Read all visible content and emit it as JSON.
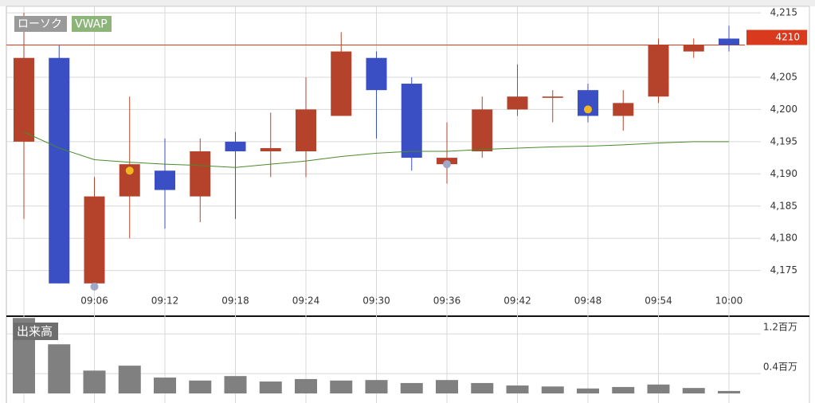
{
  "chart_data": [
    {
      "type": "candlestick",
      "categories": [
        null,
        null,
        "09:06",
        null,
        "09:12",
        null,
        "09:18",
        null,
        "09:24",
        null,
        "09:30",
        null,
        "09:36",
        null,
        "09:42",
        null,
        "09:48",
        null,
        "09:54",
        null,
        "10:00"
      ],
      "series": [
        {
          "name": "ローソク",
          "legend_color": "#9a9a9a",
          "up_color": "#b5432c",
          "down_color": "#3a4fc4",
          "open": [
            4195,
            4208,
            4173,
            4186.5,
            4190.5,
            4186.5,
            4195,
            4193.5,
            4193.5,
            4199,
            4208,
            4204,
            4191.5,
            4193.5,
            4200,
            4201.8,
            4203,
            4199,
            4202,
            4209,
            4211
          ],
          "high": [
            4215,
            4210,
            4189.5,
            4202,
            4195.5,
            4195.5,
            4196.5,
            4199.5,
            4205,
            4212,
            4209,
            4205,
            4198,
            4202,
            4207,
            4203,
            4204,
            4203,
            4211,
            4211,
            4213
          ],
          "low": [
            4183,
            4173,
            4172.5,
            4180,
            4181.5,
            4182.5,
            4183,
            4189.5,
            4189.5,
            4199,
            4195.5,
            4190.5,
            4188.5,
            4192.5,
            4199,
            4198,
            4198,
            4196.7,
            4201,
            4208,
            4209
          ],
          "close": [
            4208,
            4173,
            4186.5,
            4191.5,
            4187.5,
            4193.5,
            4193.5,
            4194,
            4200,
            4209,
            4203,
            4192.5,
            4192.5,
            4200,
            4202,
            4202,
            4199,
            4201,
            4210,
            4210,
            4210
          ]
        },
        {
          "name": "VWAP",
          "legend_color": "#8db57a",
          "color": "#4a8a2a",
          "values": [
            4196.5,
            4194,
            4192.2,
            4191.8,
            4191.5,
            4191.3,
            4191,
            4191.5,
            4192,
            4192.7,
            4193.2,
            4193.5,
            4193.5,
            4193.8,
            4194,
            4194.2,
            4194.3,
            4194.5,
            4194.8,
            4195,
            4195
          ]
        }
      ],
      "markers": [
        {
          "index": 2,
          "value": 4172.5,
          "color": "#a0a8c8"
        },
        {
          "index": 3,
          "value": 4190.5,
          "color": "#f2b621"
        },
        {
          "index": 12,
          "value": 4191.5,
          "color": "#a0a8c8"
        },
        {
          "index": 16,
          "value": 4200,
          "color": "#f2b621"
        }
      ],
      "current_price": 4210,
      "current_price_color": "#d9391c",
      "ylim": [
        4171,
        4216
      ],
      "yticks": [
        {
          "value": 4175,
          "label": "4,175"
        },
        {
          "value": 4180,
          "label": "4,180"
        },
        {
          "value": 4185,
          "label": "4,185"
        },
        {
          "value": 4190,
          "label": "4,190"
        },
        {
          "value": 4195,
          "label": "4,195"
        },
        {
          "value": 4200,
          "label": "4,200"
        },
        {
          "value": 4205,
          "label": "4,205"
        },
        {
          "value": 4215,
          "label": "4,215"
        }
      ],
      "grid": true
    },
    {
      "type": "bar",
      "title": "出来高",
      "color": "#808080",
      "values": [
        1.52,
        0.99,
        0.46,
        0.56,
        0.32,
        0.26,
        0.35,
        0.24,
        0.29,
        0.26,
        0.27,
        0.21,
        0.27,
        0.21,
        0.16,
        0.14,
        0.1,
        0.13,
        0.18,
        0.11,
        0.05
      ],
      "ylim": [
        0,
        1.54
      ],
      "yticks": [
        {
          "value": 0.4,
          "label": "0.4百万"
        },
        {
          "value": 1.2,
          "label": "1.2百万"
        }
      ],
      "grid": true
    }
  ]
}
